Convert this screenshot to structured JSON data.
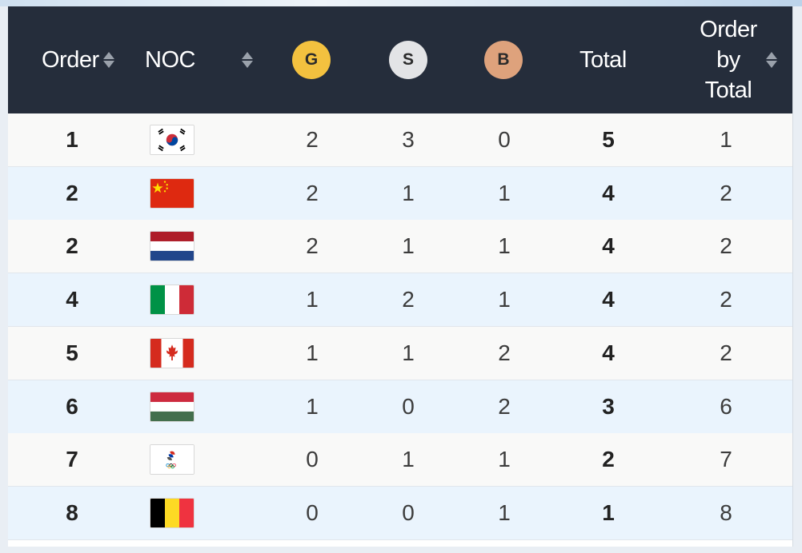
{
  "table": {
    "header": {
      "order": "Order",
      "noc": "NOC",
      "gold": "G",
      "silver": "S",
      "bronze": "B",
      "total": "Total",
      "order_by_total_line1": "Order",
      "order_by_total_line2": "by",
      "order_by_total_line3": "Total"
    },
    "medal_colors": {
      "gold": "#f3c13f",
      "silver": "#e3e4e6",
      "bronze": "#dea27c"
    },
    "header_bg": "#252d3b",
    "rows": [
      {
        "order": "1",
        "flag": "south-korea-flag",
        "gold": "2",
        "silver": "3",
        "bronze": "0",
        "total": "5",
        "order_by_total": "1"
      },
      {
        "order": "2",
        "flag": "china-flag",
        "gold": "2",
        "silver": "1",
        "bronze": "1",
        "total": "4",
        "order_by_total": "2"
      },
      {
        "order": "2",
        "flag": "netherlands-flag",
        "gold": "2",
        "silver": "1",
        "bronze": "1",
        "total": "4",
        "order_by_total": "2"
      },
      {
        "order": "4",
        "flag": "italy-flag",
        "gold": "1",
        "silver": "2",
        "bronze": "1",
        "total": "4",
        "order_by_total": "2"
      },
      {
        "order": "5",
        "flag": "canada-flag",
        "gold": "1",
        "silver": "1",
        "bronze": "2",
        "total": "4",
        "order_by_total": "2"
      },
      {
        "order": "6",
        "flag": "hungary-flag",
        "gold": "1",
        "silver": "0",
        "bronze": "2",
        "total": "3",
        "order_by_total": "6"
      },
      {
        "order": "7",
        "flag": "roc-olympic-flag",
        "gold": "0",
        "silver": "1",
        "bronze": "1",
        "total": "2",
        "order_by_total": "7"
      },
      {
        "order": "8",
        "flag": "belgium-flag",
        "gold": "0",
        "silver": "0",
        "bronze": "1",
        "total": "1",
        "order_by_total": "8"
      }
    ]
  }
}
